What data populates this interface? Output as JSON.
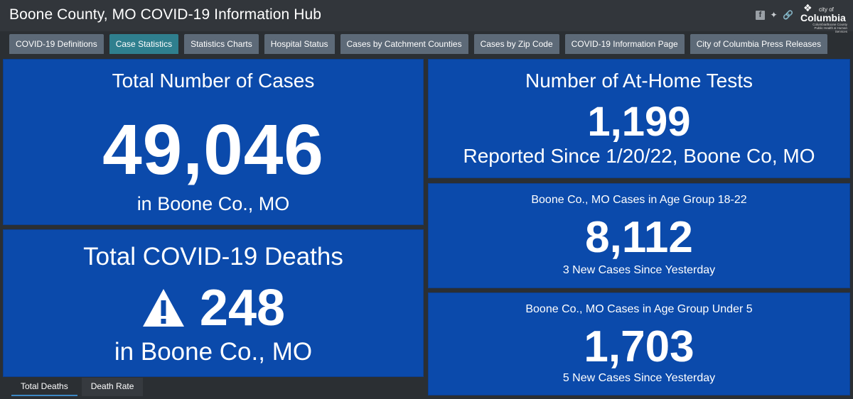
{
  "header": {
    "title": "Boone County, MO COVID-19 Information Hub",
    "social": [
      "facebook-icon",
      "twitter-icon",
      "link-icon"
    ],
    "logo": {
      "small": "city of",
      "name": "Columbia",
      "sub": "Columbia/Boone County Public Health & Human Services"
    }
  },
  "tabs": [
    {
      "label": "COVID-19 Definitions",
      "active": false
    },
    {
      "label": "Case Statistics",
      "active": true
    },
    {
      "label": "Statistics Charts",
      "active": false
    },
    {
      "label": "Hospital Status",
      "active": false
    },
    {
      "label": "Cases by Catchment Counties",
      "active": false
    },
    {
      "label": "Cases by Zip Code",
      "active": false
    },
    {
      "label": "COVID-19 Information Page",
      "active": false
    },
    {
      "label": "City of Columbia Press Releases",
      "active": false
    }
  ],
  "cards": {
    "total_cases": {
      "title": "Total Number of Cases",
      "value": "49,046",
      "subtitle": "in Boone Co., MO"
    },
    "deaths": {
      "title": "Total COVID-19 Deaths",
      "value": "248",
      "subtitle": "in Boone Co., MO",
      "icon": "warning-icon"
    },
    "home_tests": {
      "title": "Number of At-Home Tests",
      "value": "1,199",
      "subtitle": "Reported Since 1/20/22, Boone Co, MO"
    },
    "age_18_22": {
      "title": "Boone Co., MO Cases in Age Group 18-22",
      "value": "8,112",
      "subtitle": "3 New Cases Since Yesterday"
    },
    "age_under_5": {
      "title": "Boone Co., MO Cases in Age Group Under 5",
      "value": "1,703",
      "subtitle": "5 New Cases Since Yesterday"
    }
  },
  "bottom_tabs": [
    {
      "label": "Total Deaths",
      "active": true
    },
    {
      "label": "Death Rate",
      "active": false
    }
  ],
  "colors": {
    "card": "#0b4aab",
    "header": "#32363b",
    "tab": "#5d6a78",
    "tab_active": "#2f7f8e",
    "background": "#2b2f33"
  }
}
